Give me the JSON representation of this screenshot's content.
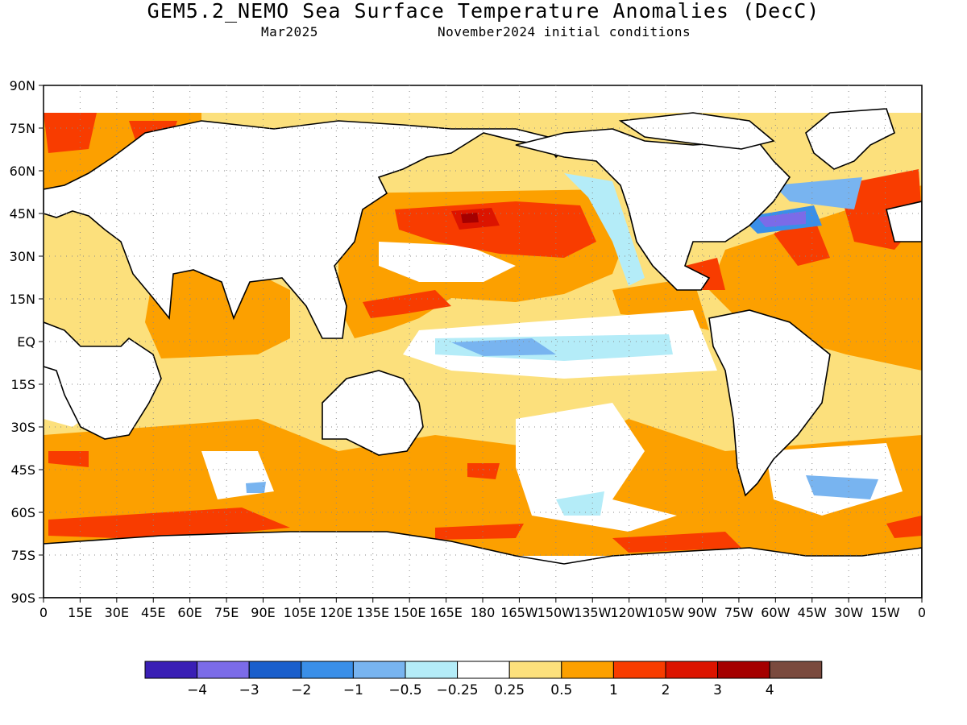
{
  "title": "GEM5.2_NEMO Sea Surface Temperature Anomalies (DecC)",
  "subtitle_left": "Mar2025",
  "subtitle_right": "November2024 initial conditions",
  "lat_labels": [
    "90N",
    "75N",
    "60N",
    "45N",
    "30N",
    "15N",
    "EQ",
    "15S",
    "30S",
    "45S",
    "60S",
    "75S",
    "90S"
  ],
  "lon_labels": [
    "0",
    "15E",
    "30E",
    "45E",
    "60E",
    "75E",
    "90E",
    "105E",
    "120E",
    "135E",
    "150E",
    "165E",
    "180",
    "165W",
    "150W",
    "135W",
    "120W",
    "105W",
    "90W",
    "75W",
    "60W",
    "45W",
    "30W",
    "15W",
    "0"
  ],
  "colorbar": {
    "colors": [
      "#3a1fb5",
      "#7b6be8",
      "#1a5fcc",
      "#3a8fe8",
      "#78b4f0",
      "#b4ecf8",
      "#ffffff",
      "#fce07c",
      "#fca000",
      "#f83c00",
      "#dc1400",
      "#a50000",
      "#7a4a3e"
    ],
    "labels": [
      "−4",
      "−3",
      "−2",
      "−1",
      "−0.5",
      "−0.25",
      "0.25",
      "0.5",
      "1",
      "2",
      "3",
      "4"
    ]
  }
}
